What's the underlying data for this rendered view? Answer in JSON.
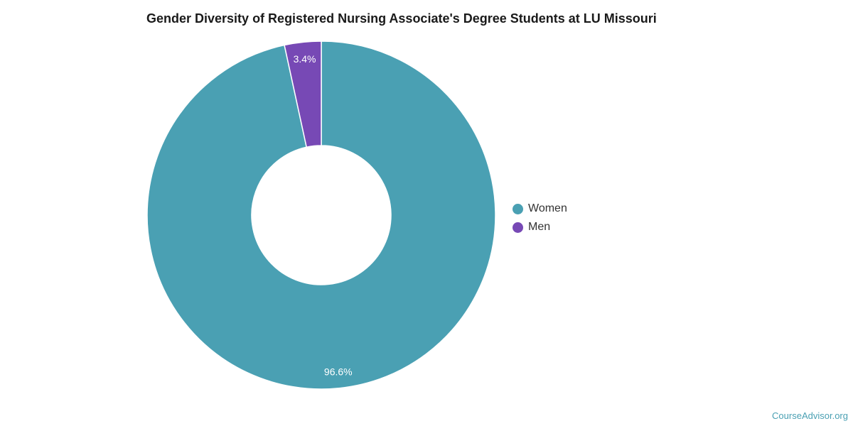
{
  "chart_data": {
    "type": "pie",
    "title": "Gender Diversity of Registered Nursing Associate's Degree Students at LU Missouri",
    "categories": [
      "Women",
      "Men"
    ],
    "values": [
      96.6,
      3.4
    ],
    "data_labels": [
      "96.6%",
      "3.4%"
    ],
    "colors": [
      "#4aa0b3",
      "#7749b5"
    ],
    "donut": true,
    "legend_placement": "right"
  },
  "source": {
    "label": "CourseAdvisor.org",
    "color": "#4aa0b3"
  }
}
